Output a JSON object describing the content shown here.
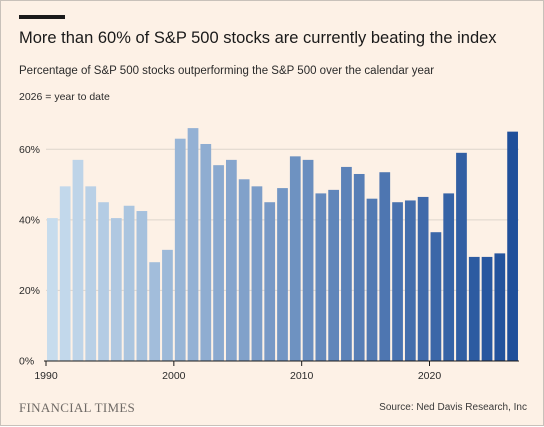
{
  "header": {
    "title": "More than 60% of S&P 500 stocks are currently beating the index",
    "subtitle": "Percentage of S&P 500 stocks outperforming the S&P 500 over the calendar year",
    "note": "2026 = year to date"
  },
  "footer": {
    "brand": "FINANCIAL TIMES",
    "source": "Source: Ned Davis Research, Inc"
  },
  "colors": {
    "background": "#fdf1e6",
    "gradient_start": "#c7dced",
    "gradient_end": "#1f4f9a",
    "gridline": "#ddd5cc",
    "axis": "#1a1a1a"
  },
  "chart_data": {
    "type": "bar",
    "xlabel": "",
    "ylabel": "",
    "ylim": [
      0,
      70
    ],
    "yticks": [
      0,
      20,
      40,
      60
    ],
    "ytick_labels": [
      "0%",
      "20%",
      "40%",
      "60%"
    ],
    "xticks": [
      1990,
      2000,
      2010,
      2020
    ],
    "xtick_labels": [
      "1990",
      "2000",
      "2010",
      "2020"
    ],
    "grid": true,
    "categories": [
      1990,
      1991,
      1992,
      1993,
      1994,
      1995,
      1996,
      1997,
      1998,
      1999,
      2000,
      2001,
      2002,
      2003,
      2004,
      2005,
      2006,
      2007,
      2008,
      2009,
      2010,
      2011,
      2012,
      2013,
      2014,
      2015,
      2016,
      2017,
      2018,
      2019,
      2020,
      2021,
      2022,
      2023,
      2024,
      2025,
      2026
    ],
    "values": [
      40.5,
      49.5,
      57,
      49.5,
      45,
      40.5,
      44,
      42.5,
      28,
      31.5,
      63,
      66,
      61.5,
      55.5,
      57,
      51.5,
      49.5,
      45,
      49,
      58,
      57,
      47.5,
      48.5,
      55,
      53,
      46,
      53.5,
      45,
      45.5,
      46.5,
      36.5,
      47.5,
      59,
      29.5,
      29.5,
      30.5,
      65
    ]
  }
}
